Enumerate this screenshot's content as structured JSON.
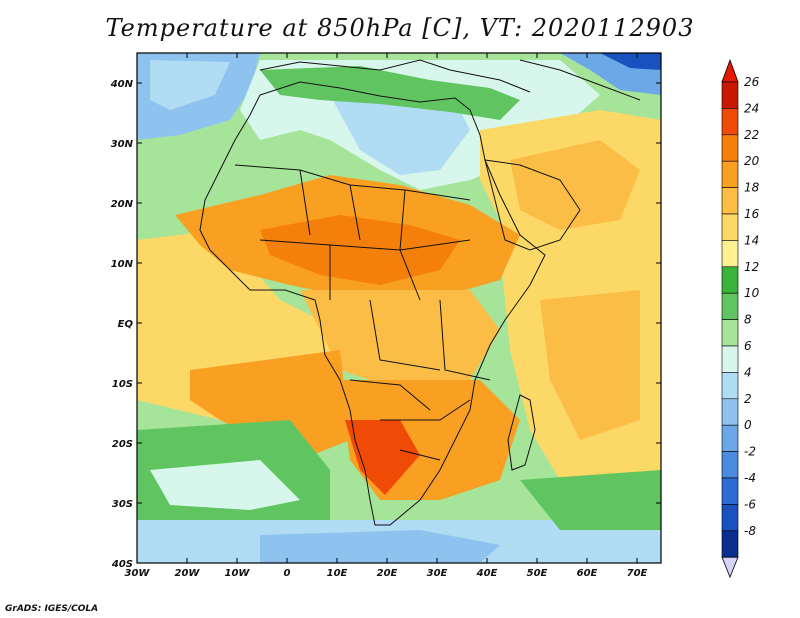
{
  "title": "Temperature at 850hPa [C], VT: 2020112903",
  "credit": "GrADS: IGES/COLA",
  "lat_ticks": [
    "40N",
    "30N",
    "20N",
    "10N",
    "EQ",
    "10S",
    "20S",
    "30S",
    "40S"
  ],
  "lon_ticks": [
    "30W",
    "20W",
    "10W",
    "0",
    "10E",
    "20E",
    "30E",
    "40E",
    "50E",
    "60E",
    "70E"
  ],
  "colorbar": {
    "labels": [
      "26",
      "24",
      "22",
      "20",
      "18",
      "16",
      "14",
      "12",
      "10",
      "8",
      "6",
      "4",
      "2",
      "0",
      "-2",
      "-4",
      "-6",
      "-8"
    ],
    "colors": [
      "#c81a00",
      "#ef4a06",
      "#f57f0b",
      "#f99f22",
      "#fbbd45",
      "#fcd966",
      "#fdf08e",
      "#39b339",
      "#60c560",
      "#a6e49a",
      "#d8f7ec",
      "#b0dcf4",
      "#8ec3ef",
      "#6ca7e8",
      "#4b8bdf",
      "#2d6dd3",
      "#1952bf",
      "#0a2e8f"
    ],
    "top_color": "#e31a00",
    "bottom_color": "#d4d4f8"
  },
  "field": {
    "sea_color": "#a6e49a",
    "regions": [
      {
        "name": "sahara-north",
        "color": "#d8f7ec"
      },
      {
        "name": "med-sea",
        "color": "#60c560"
      },
      {
        "name": "sahel-band",
        "color": "#f99f22"
      },
      {
        "name": "central-africa",
        "color": "#fbbd45"
      },
      {
        "name": "south-atlantic-warm",
        "color": "#fcd966"
      },
      {
        "name": "southern-africa",
        "color": "#f99f22"
      },
      {
        "name": "kalahari-hot",
        "color": "#ef4a06"
      },
      {
        "name": "south-cold",
        "color": "#b0dcf4"
      },
      {
        "name": "north-cold",
        "color": "#8ec3ef"
      }
    ]
  }
}
